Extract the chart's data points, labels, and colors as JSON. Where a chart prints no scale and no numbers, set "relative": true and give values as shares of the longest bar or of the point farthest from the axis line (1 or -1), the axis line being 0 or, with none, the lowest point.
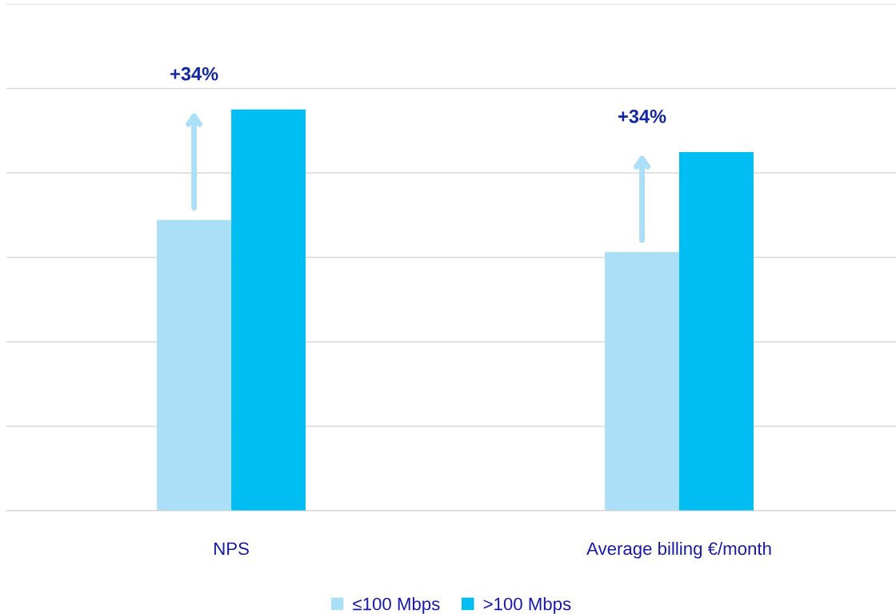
{
  "chart_data": {
    "type": "bar",
    "relative": true,
    "categories": [
      "NPS",
      "Average billing €/month"
    ],
    "series": [
      {
        "name": "≤100 Mbps",
        "color": "#abdff8",
        "values": [
          0.725,
          0.645
        ]
      },
      {
        "name": ">100 Mbps",
        "color": "#00bdf2",
        "values": [
          1,
          0.894
        ]
      }
    ],
    "annotations": [
      "+34%",
      "+34%"
    ],
    "grid": "y",
    "legend": "bottom"
  }
}
